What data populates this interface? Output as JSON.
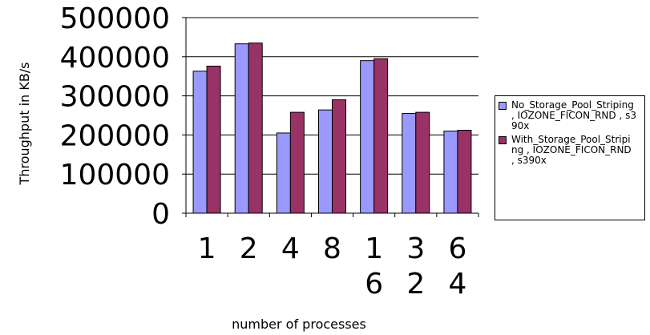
{
  "chart_data": {
    "type": "bar",
    "ylabel": "Throughput in KB/s",
    "xlabel": "number of processes",
    "categories": [
      "1",
      "2",
      "4",
      "8",
      "16",
      "32",
      "64"
    ],
    "ylim": [
      0,
      500000
    ],
    "yticks": [
      "0",
      "100000",
      "200000",
      "300000",
      "400000",
      "500000"
    ],
    "grid": true,
    "legend_position": "right",
    "series": [
      {
        "name": "No_Storage_Pool_Striping , IOZONE_FICON_RND , s390x",
        "color": "#9999ff",
        "values": [
          363000,
          433000,
          205000,
          264000,
          390000,
          255000,
          210000
        ]
      },
      {
        "name": "With_Storage_Pool_Striping , IOZONE_FICON_RND , s390x",
        "color": "#993366",
        "values": [
          376000,
          435000,
          258000,
          290000,
          395000,
          258000,
          212000
        ]
      }
    ]
  }
}
